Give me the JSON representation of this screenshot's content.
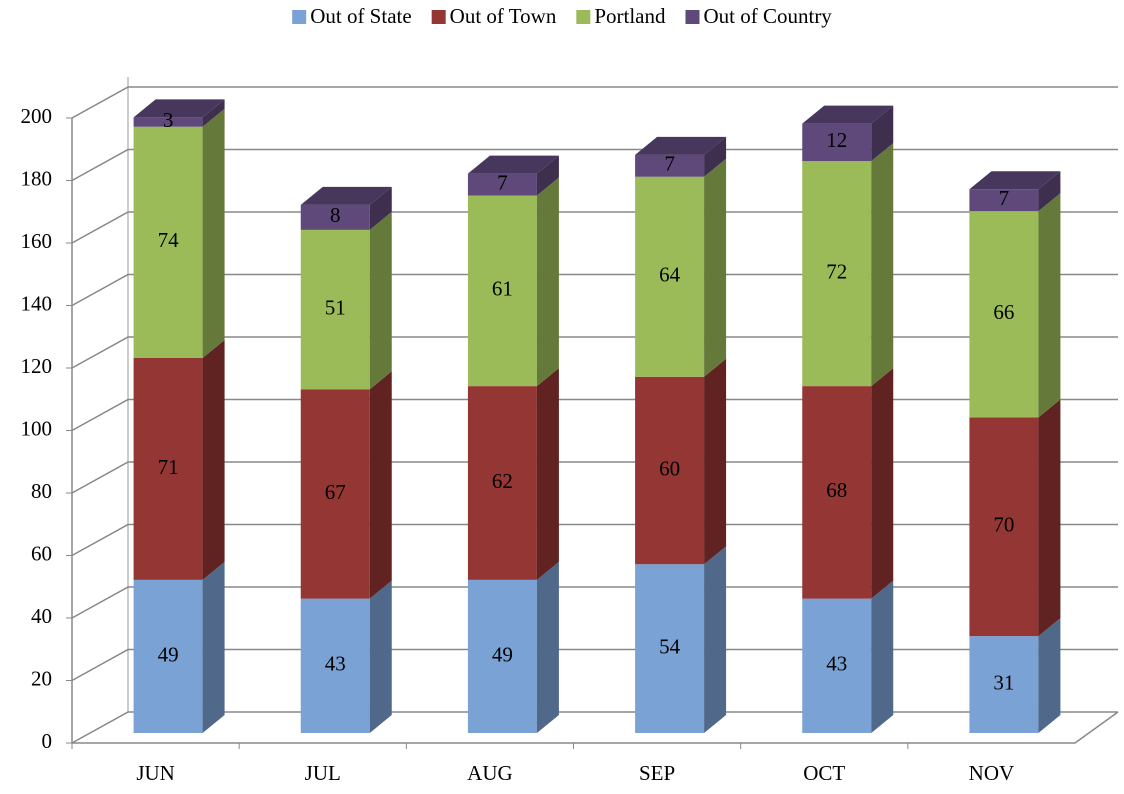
{
  "chart_data": {
    "type": "bar3d_stacked",
    "categories": [
      "JUN",
      "JUL",
      "AUG",
      "SEP",
      "OCT",
      "NOV"
    ],
    "series": [
      {
        "name": "Out of State",
        "color": "#7ba2d4",
        "values": [
          49,
          43,
          49,
          54,
          43,
          31
        ]
      },
      {
        "name": "Out of Town",
        "color": "#943634",
        "values": [
          71,
          67,
          62,
          60,
          68,
          70
        ]
      },
      {
        "name": "Portland",
        "color": "#9bbb59",
        "values": [
          74,
          51,
          61,
          64,
          72,
          66
        ]
      },
      {
        "name": "Out of Country",
        "color": "#5f497a",
        "values": [
          3,
          8,
          7,
          7,
          12,
          7
        ]
      }
    ],
    "ylim": [
      0,
      200
    ],
    "yticks": [
      0,
      20,
      40,
      60,
      80,
      100,
      120,
      140,
      160,
      180,
      200
    ],
    "grid": true,
    "legend": "top"
  }
}
